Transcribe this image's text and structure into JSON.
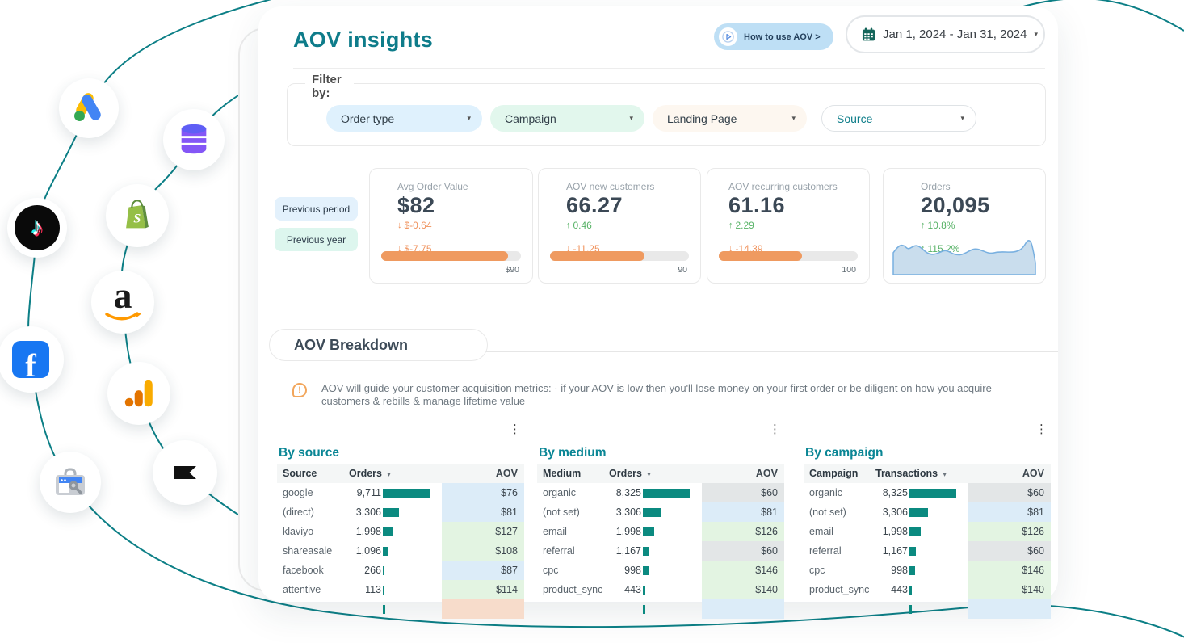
{
  "header": {
    "title": "AOV insights",
    "how_to_button": "How to use AOV >",
    "date_range": "Jan 1, 2024 - Jan 31, 2024"
  },
  "filters": {
    "legend": "Filter by:",
    "dropdowns": [
      {
        "label": "Order type",
        "bg": "#dff1fd",
        "text_color": "#33404a"
      },
      {
        "label": "Campaign",
        "bg": "#e2f7ed",
        "text_color": "#33404a"
      },
      {
        "label": "Landing Page",
        "bg": "#fdf7f0",
        "text_color": "#33404a"
      },
      {
        "label": "Source",
        "bg": "#ffffff",
        "text_color": "#0f7e8a"
      }
    ]
  },
  "comparison": {
    "period_label": "Previous period",
    "year_label": "Previous year"
  },
  "metric_cards": [
    {
      "label": "Avg Order Value",
      "value": "$82",
      "deltas": [
        {
          "dir": "down",
          "text": "$-0.64"
        },
        {
          "dir": "down",
          "text": "$-7.75"
        }
      ],
      "bar_pct": 91,
      "bar_max_label": "$90"
    },
    {
      "label": "AOV new customers",
      "value": "66.27",
      "deltas": [
        {
          "dir": "up",
          "text": "0.46"
        },
        {
          "dir": "down",
          "text": "-11.25"
        }
      ],
      "bar_pct": 68,
      "bar_max_label": "90"
    },
    {
      "label": "AOV recurring customers",
      "value": "61.16",
      "deltas": [
        {
          "dir": "up",
          "text": "2.29"
        },
        {
          "dir": "down",
          "text": "-14.39"
        }
      ],
      "bar_pct": 60,
      "bar_max_label": "100"
    },
    {
      "label": "Orders",
      "value": "20,095",
      "deltas": [
        {
          "dir": "up",
          "text": "10.8%"
        },
        {
          "dir": "up",
          "text": "115.2%"
        }
      ],
      "sparkline": true
    }
  ],
  "breakdown": {
    "tab_title": "AOV Breakdown",
    "note": "AOV will guide your customer acquisition metrics:  · if your AOV is low then you'll lose money on your first order or be diligent on how you acquire customers & rebills & manage lifetime value",
    "tables": [
      {
        "title": "By source",
        "columns": [
          "Source",
          "Orders",
          "AOV"
        ],
        "max": 9711,
        "rows": [
          {
            "name": "google",
            "value": "9,711",
            "num": 9711,
            "aov": "$76",
            "tone": "blue"
          },
          {
            "name": "(direct)",
            "value": "3,306",
            "num": 3306,
            "aov": "$81",
            "tone": "blue"
          },
          {
            "name": "klaviyo",
            "value": "1,998",
            "num": 1998,
            "aov": "$127",
            "tone": "green"
          },
          {
            "name": "shareasale",
            "value": "1,096",
            "num": 1096,
            "aov": "$108",
            "tone": "green"
          },
          {
            "name": "facebook",
            "value": "266",
            "num": 266,
            "aov": "$87",
            "tone": "blue"
          },
          {
            "name": "attentive",
            "value": "113",
            "num": 113,
            "aov": "$114",
            "tone": "green"
          }
        ],
        "partial_row_tone": "peach"
      },
      {
        "title": "By medium",
        "columns": [
          "Medium",
          "Orders",
          "AOV"
        ],
        "max": 8325,
        "rows": [
          {
            "name": "organic",
            "value": "8,325",
            "num": 8325,
            "aov": "$60",
            "tone": "gray"
          },
          {
            "name": "(not set)",
            "value": "3,306",
            "num": 3306,
            "aov": "$81",
            "tone": "blue"
          },
          {
            "name": "email",
            "value": "1,998",
            "num": 1998,
            "aov": "$126",
            "tone": "green"
          },
          {
            "name": "referral",
            "value": "1,167",
            "num": 1167,
            "aov": "$60",
            "tone": "gray"
          },
          {
            "name": "cpc",
            "value": "998",
            "num": 998,
            "aov": "$146",
            "tone": "green"
          },
          {
            "name": "product_sync",
            "value": "443",
            "num": 443,
            "aov": "$140",
            "tone": "green"
          }
        ],
        "partial_row_tone": "blue"
      },
      {
        "title": "By campaign",
        "columns": [
          "Campaign",
          "Transactions",
          "AOV"
        ],
        "max": 8325,
        "rows": [
          {
            "name": "organic",
            "value": "8,325",
            "num": 8325,
            "aov": "$60",
            "tone": "gray"
          },
          {
            "name": "(not set)",
            "value": "3,306",
            "num": 3306,
            "aov": "$81",
            "tone": "blue"
          },
          {
            "name": "email",
            "value": "1,998",
            "num": 1998,
            "aov": "$126",
            "tone": "green"
          },
          {
            "name": "referral",
            "value": "1,167",
            "num": 1167,
            "aov": "$60",
            "tone": "gray"
          },
          {
            "name": "cpc",
            "value": "998",
            "num": 998,
            "aov": "$146",
            "tone": "green"
          },
          {
            "name": "product_sync",
            "value": "443",
            "num": 443,
            "aov": "$140",
            "tone": "green"
          }
        ],
        "partial_row_tone": "blue"
      }
    ]
  },
  "integrations": [
    "Google Ads",
    "Database",
    "TikTok",
    "Shopify",
    "Amazon",
    "Facebook",
    "Google Analytics",
    "Google Search Console",
    "Klaviyo"
  ],
  "colors": {
    "accent_teal": "#0e7c8a",
    "bar_teal": "#0b8a80",
    "delta_orange": "#f0925c",
    "delta_green": "#57b266",
    "aov_blue": "#dcecf8",
    "aov_green": "#e3f4e2",
    "aov_gray": "#e3e6e7",
    "aov_peach": "#f7dccb"
  }
}
